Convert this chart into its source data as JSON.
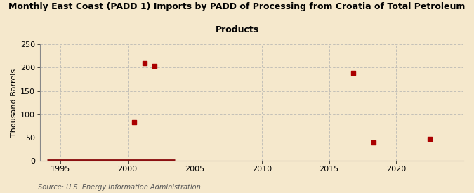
{
  "title_line1": "Monthly East Coast (PADD 1) Imports by PADD of Processing from Croatia of Total Petroleum",
  "title_line2": "Products",
  "ylabel": "Thousand Barrels",
  "source": "Source: U.S. Energy Information Administration",
  "background_color": "#f5e8cc",
  "plot_bg_color": "#f5e8cc",
  "grid_color": "#b0b0b0",
  "scatter_color": "#aa0000",
  "line_color": "#8b1010",
  "xlim": [
    1993.5,
    2025
  ],
  "ylim": [
    0,
    250
  ],
  "yticks": [
    0,
    50,
    100,
    150,
    200,
    250
  ],
  "xticks": [
    1995,
    2000,
    2005,
    2010,
    2015,
    2020
  ],
  "scatter_x": [
    2000.5,
    2001.3,
    2002.0,
    2016.8,
    2018.3,
    2022.5
  ],
  "scatter_y": [
    83,
    209,
    204,
    188,
    40,
    47
  ],
  "line_x_start": 1994.0,
  "line_x_end": 2003.5,
  "title_fontsize": 9,
  "axis_fontsize": 8,
  "tick_fontsize": 8,
  "source_fontsize": 7
}
